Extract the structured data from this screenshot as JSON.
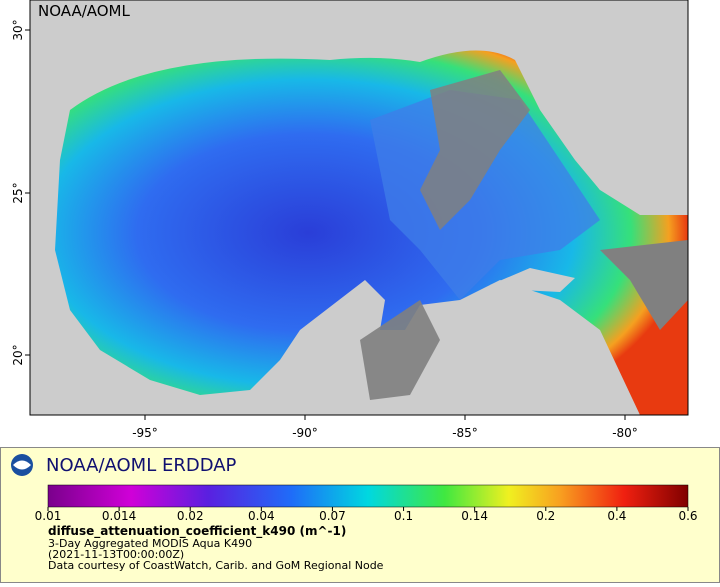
{
  "map": {
    "watermark": "NOAA/AOML",
    "lon_ticks": [
      "-95°",
      "-90°",
      "-85°",
      "-80°"
    ],
    "lat_ticks": [
      "30°",
      "25°",
      "20°"
    ]
  },
  "legend": {
    "title": "NOAA/AOML ERDDAP",
    "colorbar_ticks": [
      0.01,
      0.014,
      0.02,
      0.04,
      0.07,
      0.1,
      0.14,
      0.2,
      0.4,
      0.6
    ],
    "variable": "diffuse_attenuation_coefficient_k490 (m^-1)",
    "dataset": "3-Day Aggregated MODIS Aqua K490",
    "time": "(2021-11-13T00:00:00Z)",
    "credit": "Data courtesy of CoastWatch, Carib. and GoM Regional Node"
  }
}
